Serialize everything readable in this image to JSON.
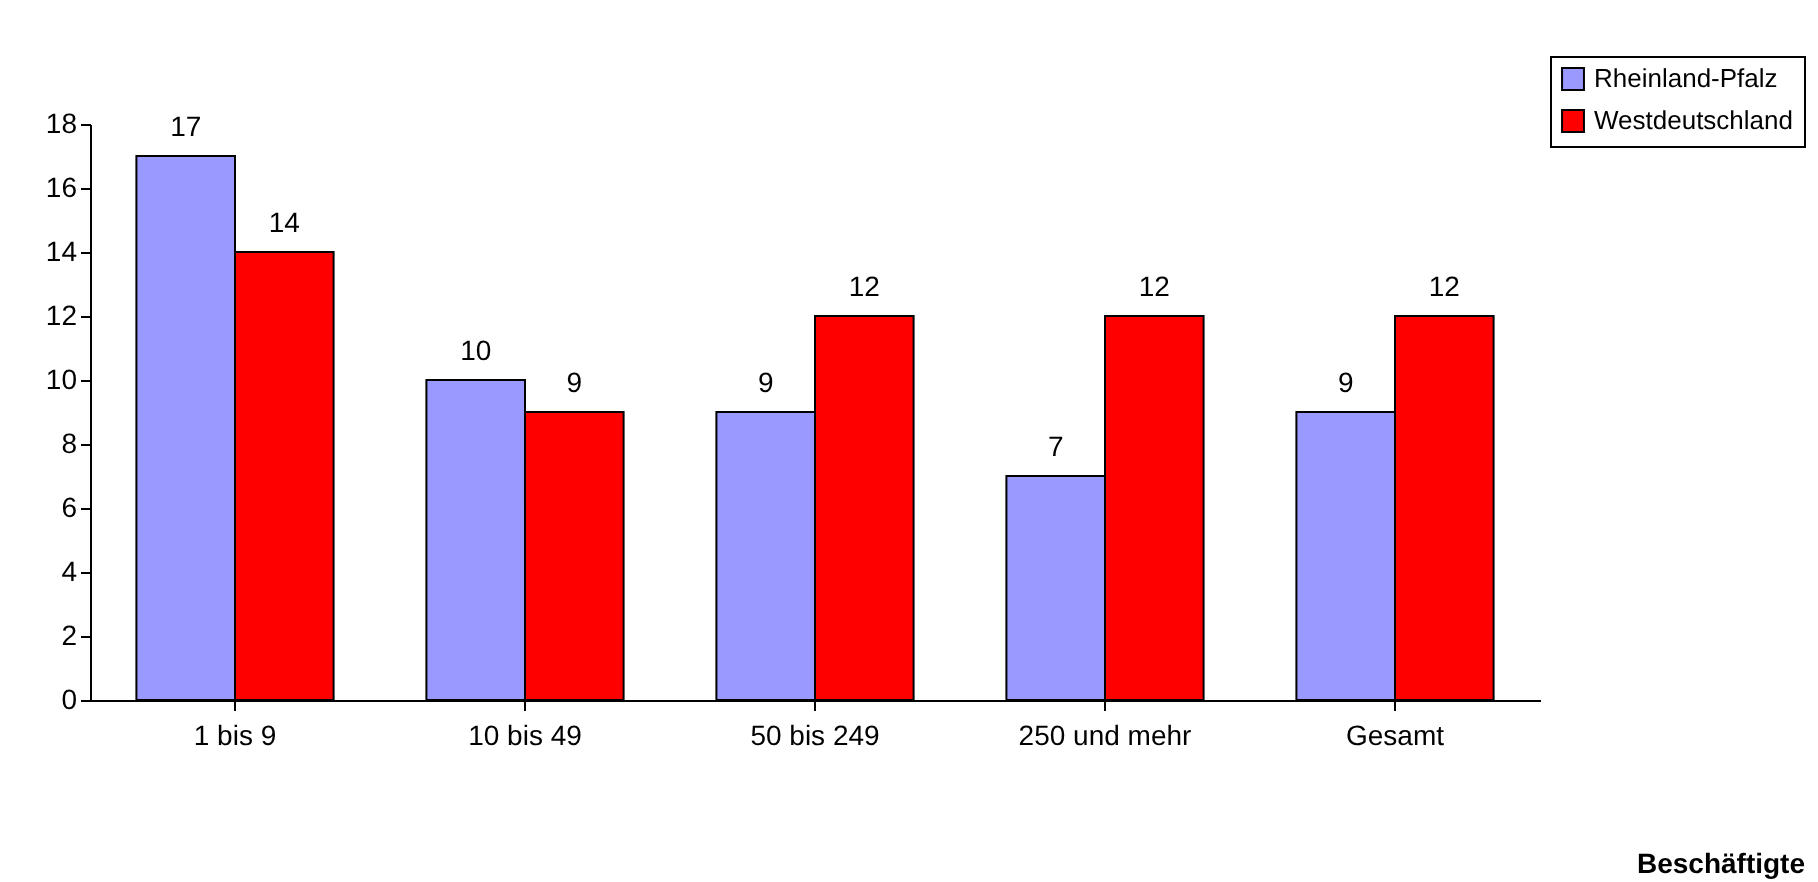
{
  "chart_data": {
    "type": "bar",
    "categories": [
      "1 bis 9",
      "10 bis 49",
      "50 bis 249",
      "250 und mehr",
      "Gesamt"
    ],
    "series": [
      {
        "name": "Rheinland-Pfalz",
        "color": "#9999ff",
        "values": [
          17,
          10,
          9,
          7,
          9
        ]
      },
      {
        "name": "Westdeutschland",
        "color": "#ff0000",
        "values": [
          14,
          9,
          12,
          12,
          12
        ]
      }
    ],
    "xlabel": "Beschäftigte",
    "ylim": [
      0,
      18
    ],
    "yticks": [
      0,
      2,
      4,
      6,
      8,
      10,
      12,
      14,
      16,
      18
    ],
    "data_labels": true,
    "legend": "top right"
  }
}
